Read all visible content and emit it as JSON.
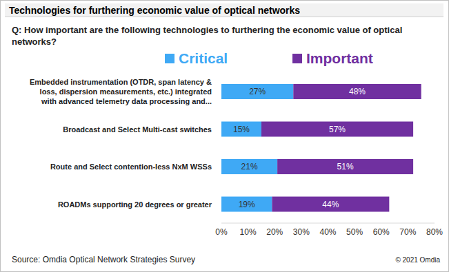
{
  "chart_data": {
    "type": "bar",
    "orientation": "horizontal",
    "stacked": true,
    "data_labels": true,
    "grid": false,
    "title": "Technologies for furthering economic value of optical networks",
    "subtitle": "Q: How important are the following technologies to furthering the economic value of optical networks?",
    "categories": [
      "Embedded instrumentation (OTDR, span latency & loss, dispersion measurements, etc.) integrated with advanced telemetry data processing and...",
      "Broadcast and Select Multi-cast switches",
      "Route and Select contention-less NxM WSSs",
      "ROADMs supporting 20 degrees or greater"
    ],
    "series": [
      {
        "name": "Critical",
        "color": "#3fa9f5",
        "values": [
          27,
          15,
          21,
          19
        ],
        "value_labels": [
          "27%",
          "15%",
          "21%",
          "19%"
        ]
      },
      {
        "name": "Important",
        "color": "#7030a0",
        "values": [
          48,
          57,
          51,
          44
        ],
        "value_labels": [
          "48%",
          "57%",
          "51%",
          "44%"
        ]
      }
    ],
    "xlim": [
      0,
      80
    ],
    "xticks": [
      {
        "value": 0,
        "label": "0%"
      },
      {
        "value": 10,
        "label": "10%"
      },
      {
        "value": 20,
        "label": "20%"
      },
      {
        "value": 30,
        "label": "30%"
      },
      {
        "value": 40,
        "label": "40%"
      },
      {
        "value": 50,
        "label": "50%"
      },
      {
        "value": 60,
        "label": "60%"
      },
      {
        "value": 70,
        "label": "70%"
      },
      {
        "value": 80,
        "label": "80%"
      }
    ],
    "source": "Source: Omdia Optical Network Strategies Survey",
    "copyright": "© 2021 Omdia"
  }
}
